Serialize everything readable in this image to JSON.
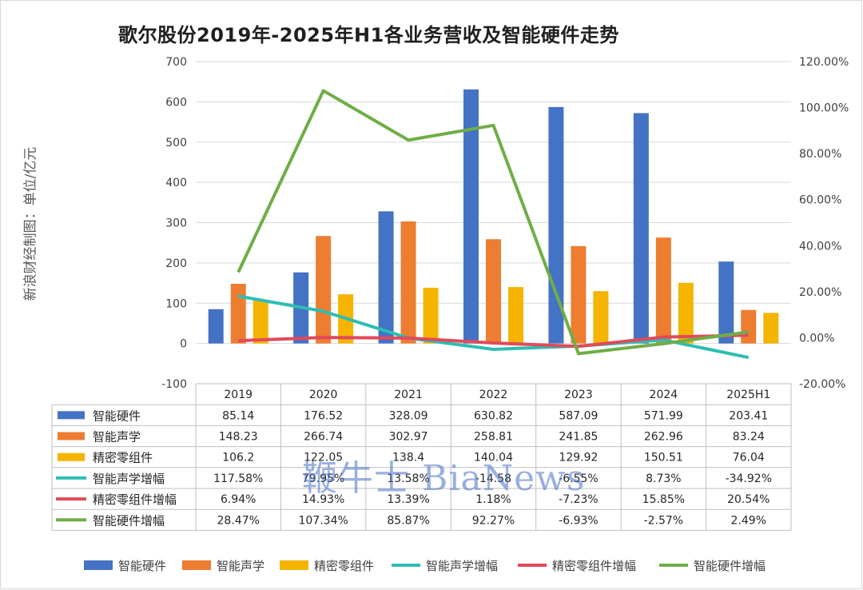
{
  "title": "歌尔股份2019年-2025年H1各业务营收及智能硬件走势",
  "ylabel": "新浪财经制图：单位/亿元",
  "watermark": "鞭牛士 BiaNews",
  "chart_data": {
    "type": "bar",
    "categories": [
      "2019",
      "2020",
      "2021",
      "2022",
      "2023",
      "2024",
      "2025H1"
    ],
    "left_axis": {
      "ylim": [
        -100,
        700
      ],
      "ticks": [
        "-100",
        "0",
        "100",
        "200",
        "300",
        "400",
        "500",
        "600",
        "700"
      ]
    },
    "right_axis": {
      "ylim": [
        -20,
        120
      ],
      "ticks": [
        "-20.00%",
        "0.00%",
        "20.00%",
        "40.00%",
        "60.00%",
        "80.00%",
        "100.00%",
        "120.00%"
      ]
    },
    "grid": true,
    "legend_position": "bottom",
    "series": [
      {
        "name": "智能硬件",
        "type": "bar",
        "axis": "left",
        "color": "#4472C4",
        "values": [
          85.14,
          176.52,
          328.09,
          630.82,
          587.09,
          571.99,
          203.41
        ],
        "labels": [
          "85.14",
          "176.52",
          "328.09",
          "630.82",
          "587.09",
          "571.99",
          "203.41"
        ]
      },
      {
        "name": "智能声学",
        "type": "bar",
        "axis": "left",
        "color": "#ED7D31",
        "values": [
          148.23,
          266.74,
          302.97,
          258.81,
          241.85,
          262.96,
          83.24
        ],
        "labels": [
          "148.23",
          "266.74",
          "302.97",
          "258.81",
          "241.85",
          "262.96",
          "83.24"
        ]
      },
      {
        "name": "精密零组件",
        "type": "bar",
        "axis": "left",
        "color": "#F4B400",
        "values": [
          106.2,
          122.05,
          138.4,
          140.04,
          129.92,
          150.51,
          76.04
        ],
        "labels": [
          "106.2",
          "122.05",
          "138.4",
          "140.04",
          "129.92",
          "150.51",
          "76.04"
        ]
      },
      {
        "name": "智能声学增幅",
        "type": "line",
        "axis": "left",
        "color": "#2EBDB3",
        "values": [
          117.58,
          79.95,
          13.58,
          -14.58,
          -6.55,
          8.73,
          -34.92
        ],
        "labels": [
          "117.58%",
          "79.95%",
          "13.58%",
          "-14.58",
          "-6.55%",
          "8.73%",
          "-34.92%"
        ]
      },
      {
        "name": "精密零组件增幅",
        "type": "line",
        "axis": "left",
        "color": "#E04A5A",
        "values": [
          6.94,
          14.93,
          13.39,
          1.18,
          -7.23,
          15.85,
          20.54
        ],
        "labels": [
          "6.94%",
          "14.93%",
          "13.39%",
          "1.18%",
          "-7.23%",
          "15.85%",
          "20.54%"
        ]
      },
      {
        "name": "智能硬件增幅",
        "type": "line",
        "axis": "right",
        "color": "#70AD47",
        "values": [
          28.47,
          107.34,
          85.87,
          92.27,
          -6.93,
          -2.57,
          2.49
        ],
        "labels": [
          "28.47%",
          "107.34%",
          "85.87%",
          "92.27%",
          "-6.93%",
          "-2.57%",
          "2.49%"
        ]
      }
    ]
  }
}
